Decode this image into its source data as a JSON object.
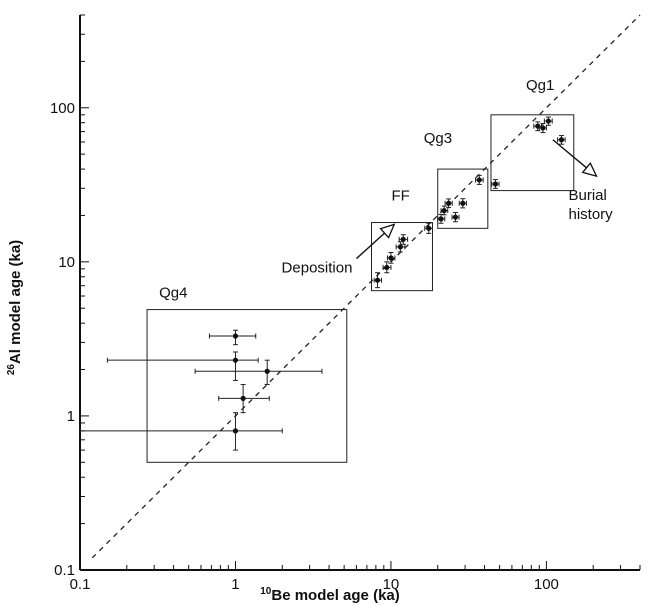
{
  "chart_data": {
    "type": "scatter",
    "xlabel": {
      "sup": "10",
      "text": "Be model age (ka)"
    },
    "ylabel": {
      "sup": "26",
      "text": "Al model age (ka)"
    },
    "xscale": "log",
    "yscale": "log",
    "xlim": [
      0.1,
      400
    ],
    "ylim": [
      0.1,
      400
    ],
    "xticks": [
      {
        "value": 0.1,
        "label": "0.1"
      },
      {
        "value": 1,
        "label": "1"
      },
      {
        "value": 10,
        "label": "10"
      },
      {
        "value": 100,
        "label": "100"
      }
    ],
    "yticks": [
      {
        "value": 0.1,
        "label": "0.1"
      },
      {
        "value": 1,
        "label": "1"
      },
      {
        "value": 10,
        "label": "10"
      },
      {
        "value": 100,
        "label": "100"
      }
    ],
    "reference_line": {
      "style": "dashed",
      "relation": "y = x"
    },
    "groups": [
      {
        "label": "Qg4",
        "box": {
          "x": [
            0.27,
            5.2
          ],
          "y": [
            0.5,
            4.9
          ]
        }
      },
      {
        "label": "FF",
        "box": {
          "x": [
            7.5,
            18.5
          ],
          "y": [
            6.5,
            18
          ]
        }
      },
      {
        "label": "Qg3",
        "box": {
          "x": [
            20,
            42
          ],
          "y": [
            16.5,
            40
          ]
        }
      },
      {
        "label": "Qg1",
        "box": {
          "x": [
            44,
            150
          ],
          "y": [
            29,
            90
          ]
        }
      }
    ],
    "points": [
      {
        "group": "Qg4",
        "x": 1.0,
        "y": 3.3,
        "xerr": [
          0.68,
          1.35
        ],
        "yerr": [
          2.9,
          3.6
        ]
      },
      {
        "group": "Qg4",
        "x": 1.0,
        "y": 2.3,
        "xerr": [
          0.15,
          1.4
        ],
        "yerr": [
          1.7,
          2.6
        ]
      },
      {
        "group": "Qg4",
        "x": 1.6,
        "y": 1.95,
        "xerr": [
          0.55,
          3.6
        ],
        "yerr": [
          1.6,
          2.3
        ]
      },
      {
        "group": "Qg4",
        "x": 1.12,
        "y": 1.3,
        "xerr": [
          0.78,
          1.65
        ],
        "yerr": [
          1.05,
          1.6
        ]
      },
      {
        "group": "Qg4",
        "x": 1.0,
        "y": 0.8,
        "xerr": [
          0.1,
          2.0
        ],
        "yerr": [
          0.6,
          1.05
        ]
      },
      {
        "group": "FF",
        "x": 8.2,
        "y": 7.6,
        "xerr": [
          7.8,
          8.7
        ],
        "yerr": [
          6.8,
          8.5
        ]
      },
      {
        "group": "FF",
        "x": 9.4,
        "y": 9.2,
        "xerr": [
          8.9,
          10.0
        ],
        "yerr": [
          8.5,
          10.0
        ]
      },
      {
        "group": "FF",
        "x": 10.0,
        "y": 10.6,
        "xerr": [
          9.5,
          10.6
        ],
        "yerr": [
          9.8,
          11.5
        ]
      },
      {
        "group": "FF",
        "x": 11.5,
        "y": 12.5,
        "xerr": [
          10.8,
          12.3
        ],
        "yerr": [
          11.6,
          13.5
        ]
      },
      {
        "group": "FF",
        "x": 12.0,
        "y": 14.0,
        "xerr": [
          11.3,
          12.8
        ],
        "yerr": [
          13.0,
          15.0
        ]
      },
      {
        "group": "FF",
        "x": 17.5,
        "y": 16.5,
        "xerr": [
          16.5,
          18.5
        ],
        "yerr": [
          15.3,
          17.8
        ]
      },
      {
        "group": "Qg3",
        "x": 21.0,
        "y": 19.0,
        "xerr": [
          20.0,
          22.2
        ],
        "yerr": [
          17.8,
          20.3
        ]
      },
      {
        "group": "Qg3",
        "x": 22.0,
        "y": 21.5,
        "xerr": [
          21.0,
          23.2
        ],
        "yerr": [
          20.2,
          23.0
        ]
      },
      {
        "group": "Qg3",
        "x": 23.5,
        "y": 24.0,
        "xerr": [
          22.3,
          24.8
        ],
        "yerr": [
          22.5,
          25.6
        ]
      },
      {
        "group": "Qg3",
        "x": 26.0,
        "y": 19.5,
        "xerr": [
          24.7,
          27.4
        ],
        "yerr": [
          18.2,
          20.9
        ]
      },
      {
        "group": "Qg3",
        "x": 29.0,
        "y": 24.0,
        "xerr": [
          27.5,
          30.6
        ],
        "yerr": [
          22.4,
          25.7
        ]
      },
      {
        "group": "Qg3",
        "x": 37.0,
        "y": 34.0,
        "xerr": [
          35.0,
          39.2
        ],
        "yerr": [
          31.8,
          36.4
        ]
      },
      {
        "group": "Qg1",
        "x": 47.0,
        "y": 32.0,
        "xerr": [
          44.5,
          49.6
        ],
        "yerr": [
          30.0,
          34.2
        ]
      },
      {
        "group": "Qg1",
        "x": 88.0,
        "y": 76.0,
        "xerr": [
          83.0,
          93.0
        ],
        "yerr": [
          71.0,
          81.0
        ]
      },
      {
        "group": "Qg1",
        "x": 95.0,
        "y": 74.0,
        "xerr": [
          90.0,
          100.0
        ],
        "yerr": [
          69.0,
          79.0
        ]
      },
      {
        "group": "Qg1",
        "x": 103.0,
        "y": 82.0,
        "xerr": [
          97.0,
          109.0
        ],
        "yerr": [
          77.0,
          87.0
        ]
      },
      {
        "group": "Qg1",
        "x": 125.0,
        "y": 62.0,
        "xerr": [
          118.0,
          132.0
        ],
        "yerr": [
          58.0,
          66.0
        ]
      }
    ],
    "annotations": [
      {
        "text": "Deposition",
        "arrow_from": {
          "x": 6.0,
          "y": 10.5
        },
        "arrow_to": {
          "x": 10.5,
          "y": 17.5
        }
      },
      {
        "text": "Burial history",
        "arrow_from": {
          "x": 110.0,
          "y": 62.0
        },
        "arrow_to": {
          "x": 210.0,
          "y": 36.0
        }
      }
    ],
    "grid": false
  }
}
